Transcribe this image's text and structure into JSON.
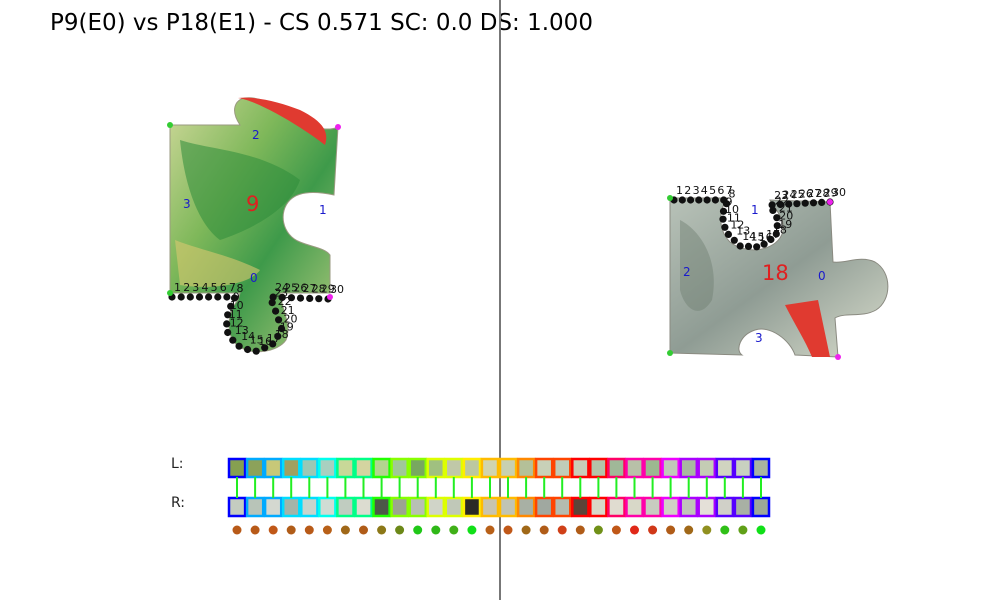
{
  "title": "P9(E0) vs P18(E1) - CS 0.571 SC: 0.0 DS: 1.000",
  "left_piece": {
    "id_label": "9",
    "edge_labels": [
      "0",
      "1",
      "2",
      "3"
    ],
    "point_labels": [
      "1",
      "2",
      "3",
      "4",
      "5",
      "6",
      "7",
      "8",
      "9",
      "10",
      "11",
      "12",
      "13",
      "14",
      "15",
      "16",
      "17",
      "18",
      "19",
      "20",
      "21",
      "22",
      "23",
      "24",
      "25",
      "26",
      "27",
      "28",
      "29",
      "30"
    ]
  },
  "right_piece": {
    "id_label": "18",
    "edge_labels": [
      "0",
      "1",
      "2",
      "3"
    ],
    "point_labels": [
      "1",
      "2",
      "3",
      "4",
      "5",
      "6",
      "7",
      "8",
      "9",
      "10",
      "11",
      "12",
      "13",
      "14",
      "15",
      "16",
      "17",
      "18",
      "19",
      "20",
      "21",
      "22",
      "23",
      "24",
      "25",
      "26",
      "27",
      "28",
      "29",
      "30"
    ]
  },
  "strip": {
    "left_label": "L:",
    "right_label": "R:",
    "border_colors": [
      "#0000ff",
      "#00aaff",
      "#00ddff",
      "#00ffee",
      "#00ff88",
      "#22ff00",
      "#88ff00",
      "#ddff00",
      "#ffee00",
      "#ffbb00",
      "#ff8800",
      "#ff4400",
      "#ff0000",
      "#ff0066",
      "#ff00aa",
      "#ee00ff",
      "#aa00ff",
      "#5500ff",
      "#0000ff"
    ],
    "left_colors": [
      "#86a050",
      "#8ca25a",
      "#c8c878",
      "#a0a060",
      "#9cc8b4",
      "#a8d0c0",
      "#c8d898",
      "#d4d4a0",
      "#b4d490",
      "#a0c898",
      "#78a860",
      "#a0c080",
      "#c0c8a8",
      "#bcc8a0",
      "#d0d4b0",
      "#c8d0b0",
      "#b4c098",
      "#c8d0b8",
      "#c0ccb8",
      "#c8ccb8",
      "#b4c4a8",
      "#a0b898",
      "#b8c0a8",
      "#9cb890",
      "#c0c8b8",
      "#a8b8a0",
      "#c4ccb4",
      "#d0d4c0",
      "#c8d0c0",
      "#a8b4a0"
    ],
    "right_colors": [
      "#c4ccc0",
      "#b8c4b8",
      "#d4d8d0",
      "#a4b4a8",
      "#c8d4cc",
      "#d0dcd4",
      "#c0ccc0",
      "#dcdcd0",
      "#4c5848",
      "#9ca490",
      "#b8c0b4",
      "#d0d4c8",
      "#c0c8b8",
      "#2a2a26",
      "#c8c4b0",
      "#c0c4b4",
      "#a8b0a4",
      "#a0a8a0",
      "#b4bcb0",
      "#5c4438",
      "#d8d8c8",
      "#e0dcd0",
      "#d8d8c8",
      "#c8ccc0",
      "#d0d0c4",
      "#c0c4b8",
      "#e4e0d8",
      "#d0d0c8",
      "#a8b0a4",
      "#9ca898"
    ],
    "dot_colors": [
      "#b85a18",
      "#b85a18",
      "#c05818",
      "#b05c18",
      "#b85a18",
      "#b86018",
      "#a06818",
      "#b05c18",
      "#8c7818",
      "#6c8818",
      "#20c818",
      "#30b818",
      "#40b018",
      "#10e018",
      "#b86018",
      "#c05818",
      "#a06818",
      "#b05c18",
      "#d04018",
      "#b05c18",
      "#709018",
      "#c05818",
      "#e02818",
      "#d03818",
      "#b05c18",
      "#a06818",
      "#909020",
      "#30c018",
      "#60a018",
      "#10e018"
    ]
  }
}
